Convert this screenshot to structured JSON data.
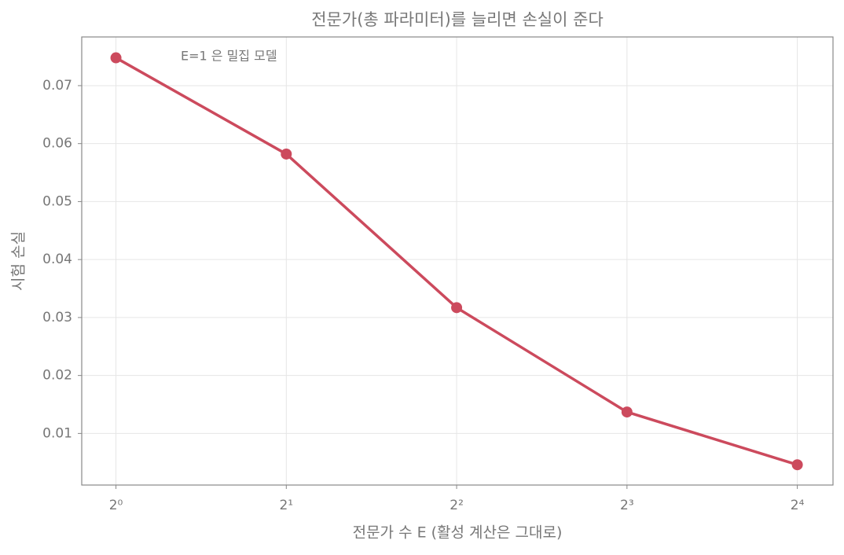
{
  "chart_data": {
    "type": "line",
    "title": "전문가(총 파라미터)를 늘리면 손실이 준다",
    "x_label": "전문가 수 E (활성 계산은 그대로)",
    "y_label": "시험 손실",
    "annotation": "E=1 은 밀집 모델",
    "x": [
      1,
      2,
      4,
      8,
      16
    ],
    "series": [
      {
        "name": "시험 손실",
        "color": "#cc4a5d",
        "values": [
          0.0748,
          0.0582,
          0.0317,
          0.0137,
          0.0046
        ]
      }
    ],
    "x_scale": "log2",
    "xlim": [
      0.87,
      18.5
    ],
    "xticks": [
      {
        "value": 1,
        "label": "2⁰"
      },
      {
        "value": 2,
        "label": "2¹"
      },
      {
        "value": 4,
        "label": "2²"
      },
      {
        "value": 8,
        "label": "2³"
      },
      {
        "value": 16,
        "label": "2⁴"
      }
    ],
    "ylim": [
      0.0011,
      0.0784
    ],
    "yticks": [
      0.01,
      0.02,
      0.03,
      0.04,
      0.05,
      0.06,
      0.07
    ],
    "grid": true
  }
}
